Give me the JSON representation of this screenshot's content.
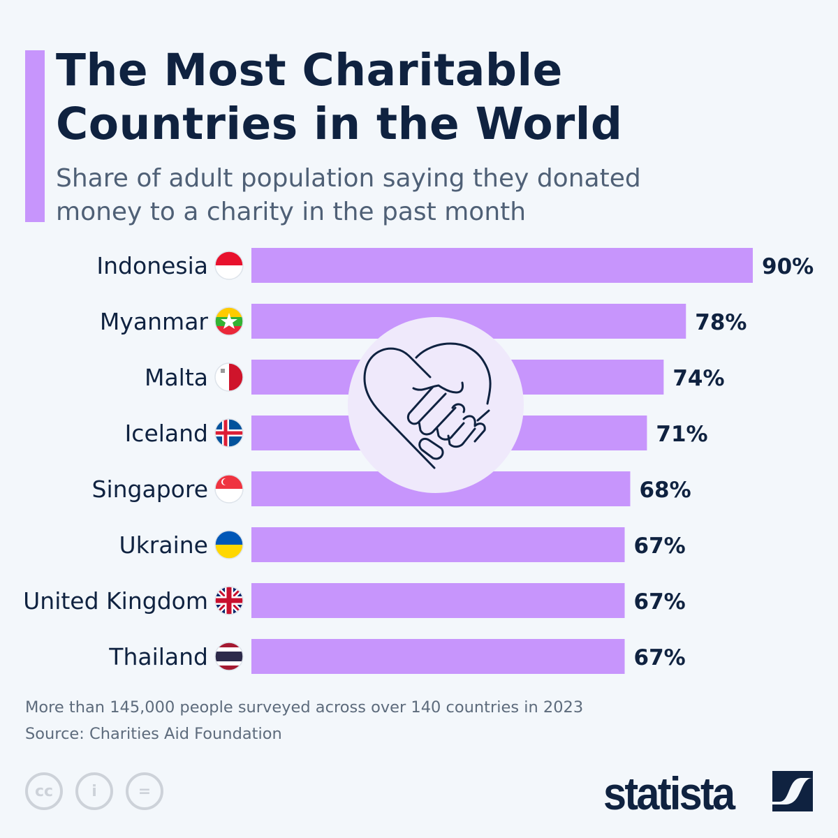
{
  "title_lines": [
    "The Most Charitable",
    "Countries in the World"
  ],
  "subtitle_lines": [
    "Share of adult population saying they donated",
    "money to a charity in the past month"
  ],
  "chart_data": {
    "type": "bar",
    "orientation": "horizontal",
    "categories": [
      "Indonesia",
      "Myanmar",
      "Malta",
      "Iceland",
      "Singapore",
      "Ukraine",
      "United Kingdom",
      "Thailand"
    ],
    "values": [
      90,
      78,
      74,
      71,
      68,
      67,
      67,
      67
    ],
    "value_labels": [
      "90%",
      "78%",
      "74%",
      "71%",
      "68%",
      "67%",
      "67%",
      "67%"
    ],
    "unit": "%",
    "xlim": [
      0,
      90
    ],
    "grid": false,
    "bar_color": "#c795fc",
    "flag_icons": [
      "indonesia-flag-icon",
      "myanmar-flag-icon",
      "malta-flag-icon",
      "iceland-flag-icon",
      "singapore-flag-icon",
      "ukraine-flag-icon",
      "united-kingdom-flag-icon",
      "thailand-flag-icon"
    ]
  },
  "illustration": "heart-handshake-icon",
  "footer": {
    "note": "More than 145,000 people surveyed across over 140 countries in 2023",
    "source": "Source: Charities Aid Foundation"
  },
  "license_icons": [
    "cc-icon",
    "attribution-icon",
    "no-derivatives-icon"
  ],
  "license_glyphs": [
    "cc",
    "i",
    "="
  ],
  "brand": "statista",
  "colors": {
    "accent": "#c795fc",
    "text": "#0f2240",
    "background": "#f3f7fb"
  }
}
